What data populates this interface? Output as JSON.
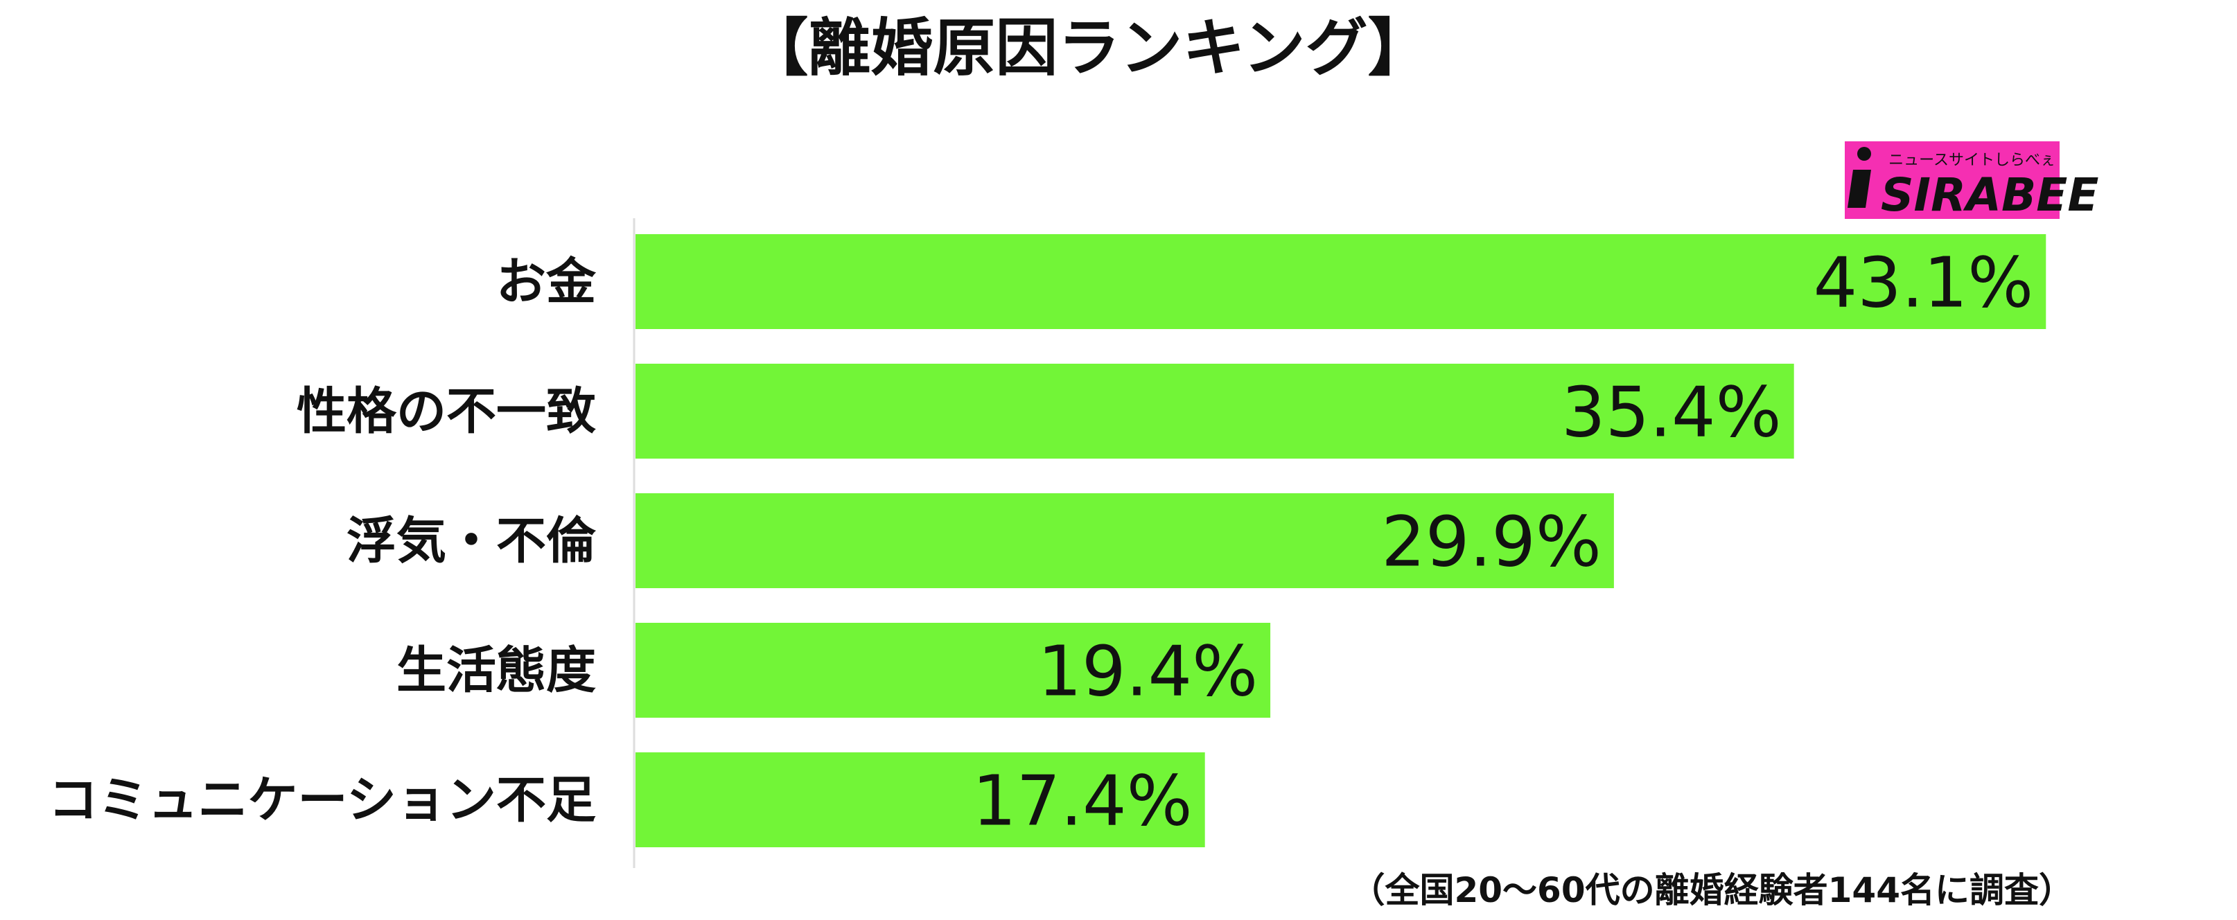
{
  "chart_data": {
    "type": "bar",
    "orientation": "horizontal",
    "title": "【離婚原因ランキング】",
    "categories": [
      "お金",
      "性格の不一致",
      "浮気・不倫",
      "生活態度",
      "コミュニケーション不足"
    ],
    "values": [
      43.1,
      35.4,
      29.9,
      19.4,
      17.4
    ],
    "value_labels": [
      "43.1%",
      "35.4%",
      "29.9%",
      "19.4%",
      "17.4%"
    ],
    "unit": "%",
    "xlim": [
      0,
      45
    ],
    "grid": false,
    "bar_color": "#72f537",
    "note": "（全国20〜60代の離婚経験者144名に調査）"
  },
  "logo": {
    "text": "SIRABEE",
    "subtext": "ニュースサイトしらべぇ",
    "background_color": "#f52fb2"
  }
}
